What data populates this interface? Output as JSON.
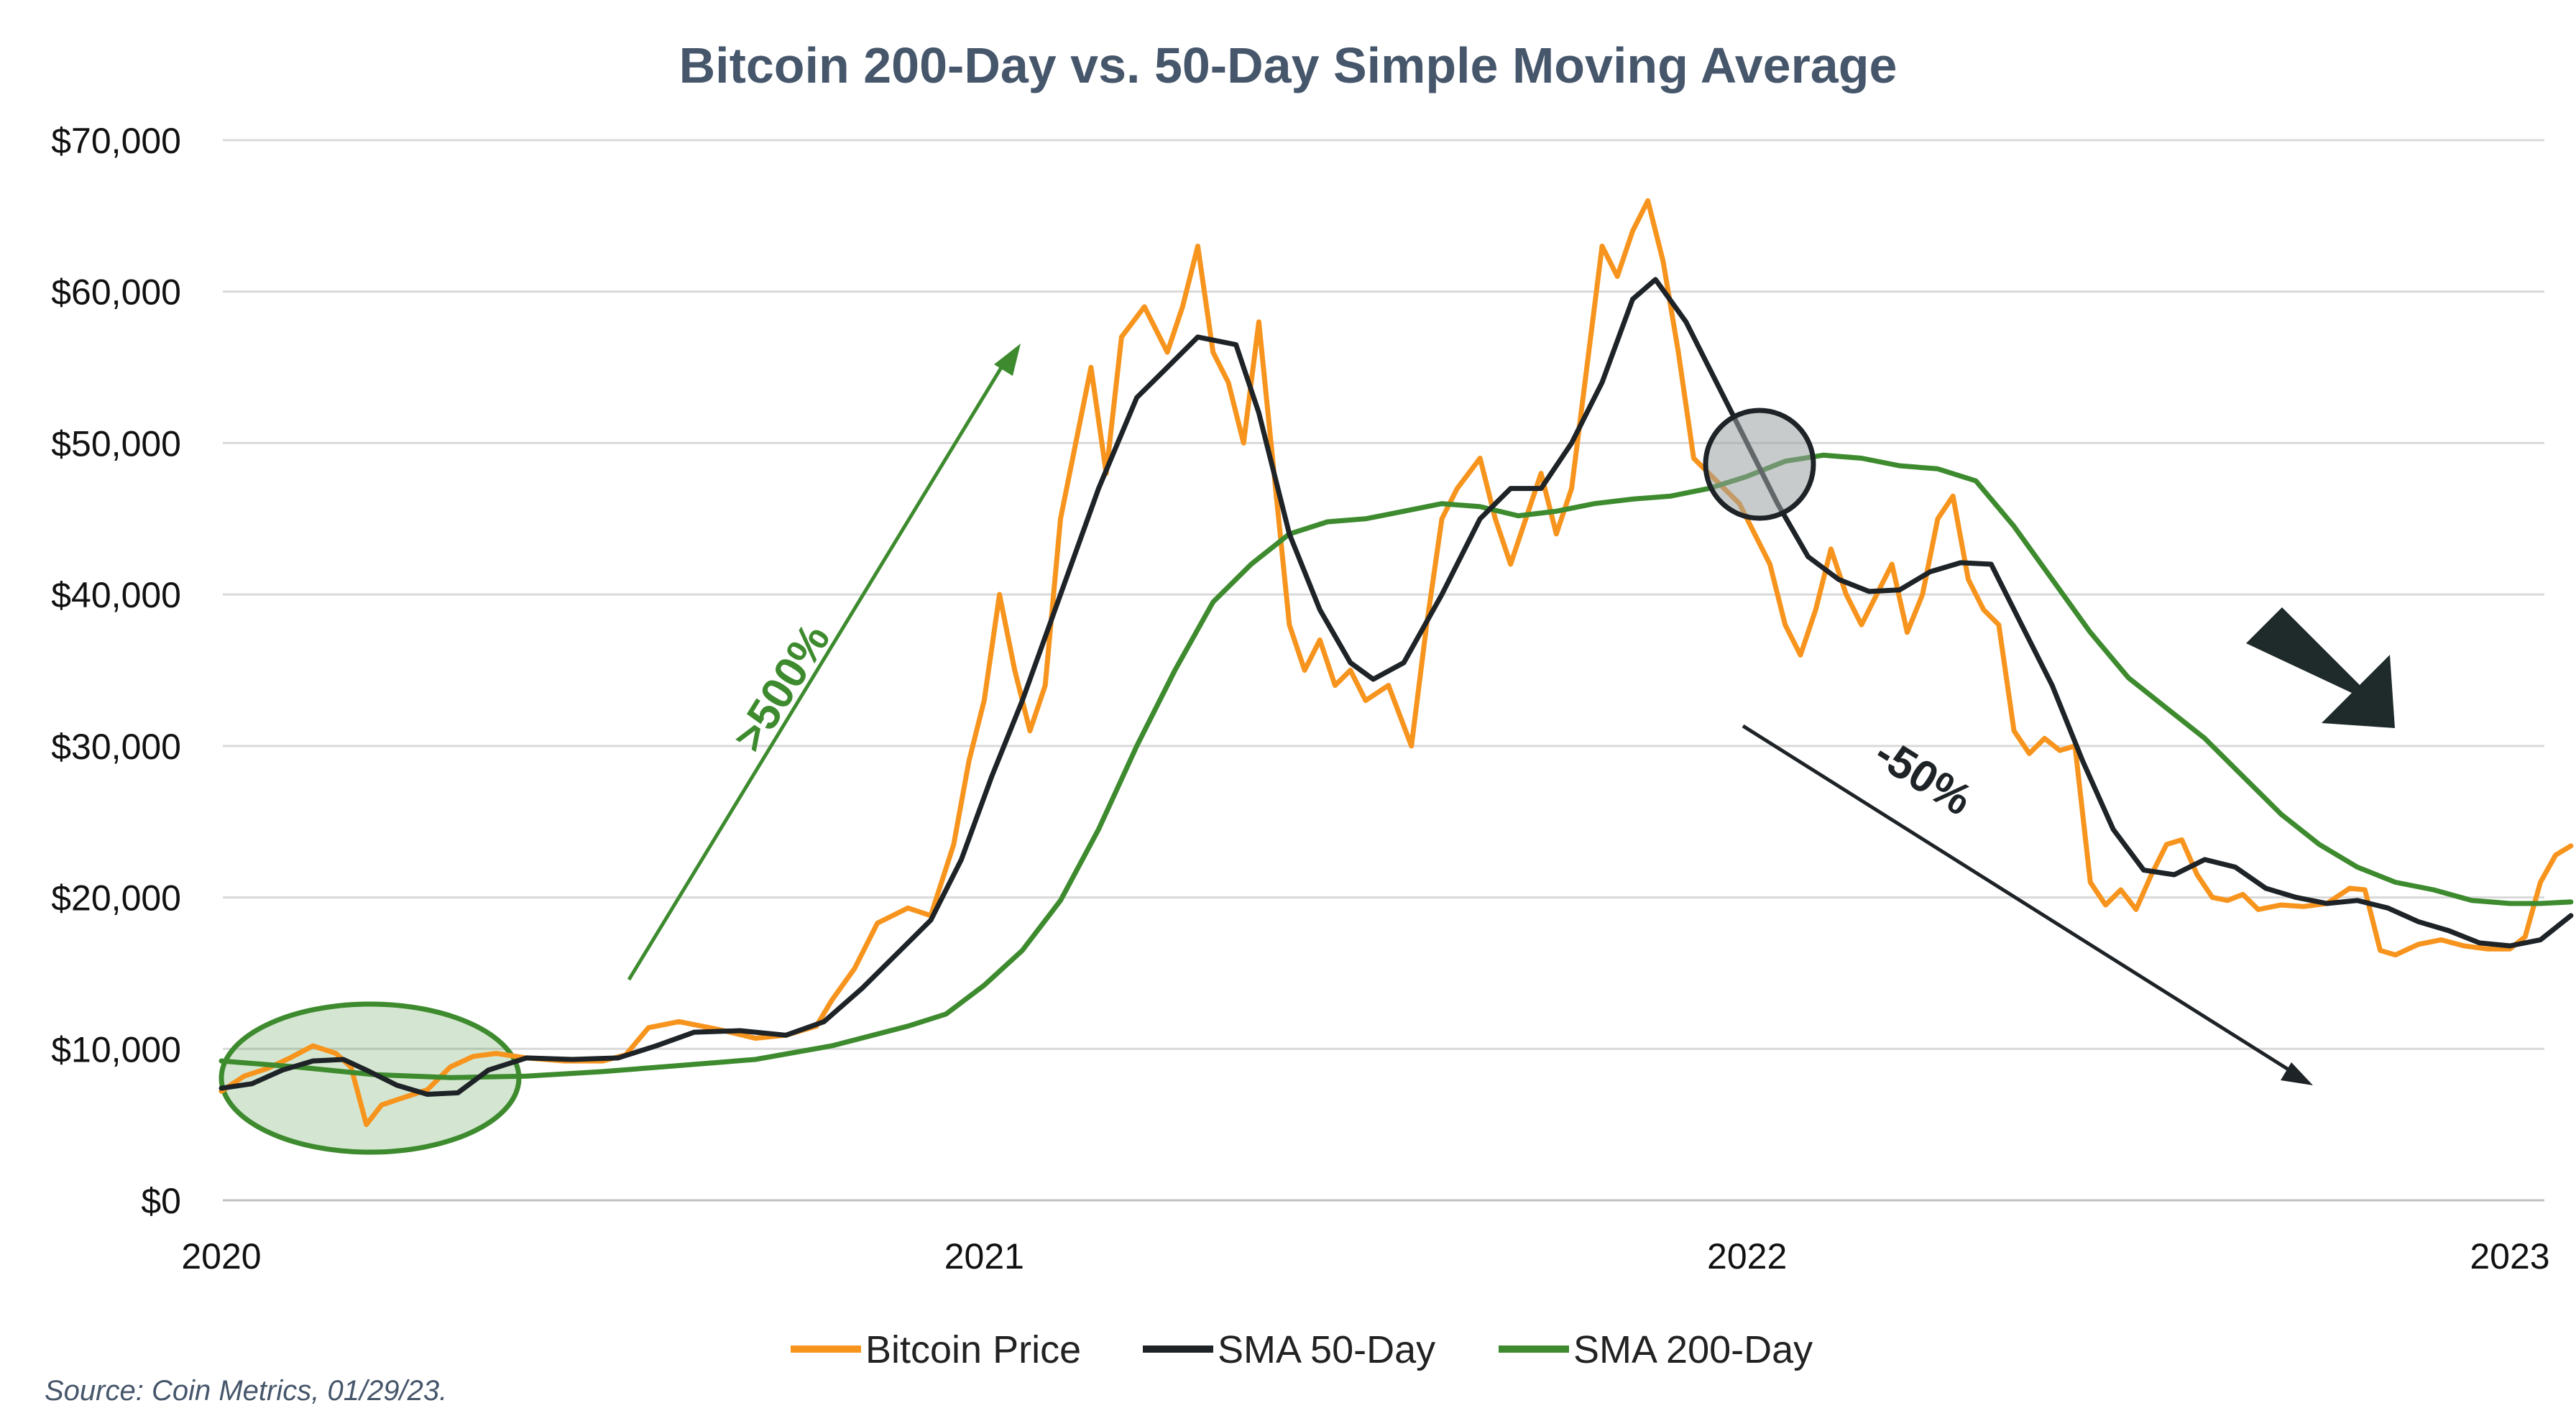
{
  "chart_data": {
    "type": "line",
    "title": "Bitcoin 200-Day vs. 50-Day Simple Moving Average",
    "xlabel": "",
    "ylabel": "",
    "xlim": [
      2020.0,
      2023.08
    ],
    "ylim": [
      0,
      70000
    ],
    "x_ticks": [
      {
        "value": 2020,
        "label": "2020"
      },
      {
        "value": 2021,
        "label": "2021"
      },
      {
        "value": 2022,
        "label": "2022"
      },
      {
        "value": 2023,
        "label": "2023"
      }
    ],
    "y_ticks": [
      {
        "value": 0,
        "label": "$0"
      },
      {
        "value": 10000,
        "label": "$10,000"
      },
      {
        "value": 20000,
        "label": "$20,000"
      },
      {
        "value": 30000,
        "label": "$30,000"
      },
      {
        "value": 40000,
        "label": "$40,000"
      },
      {
        "value": 50000,
        "label": "$50,000"
      },
      {
        "value": 60000,
        "label": "$60,000"
      },
      {
        "value": 70000,
        "label": "$70,000"
      }
    ],
    "grid": true,
    "legend_position": "bottom-center",
    "series": [
      {
        "name": "Bitcoin Price",
        "color": "#f7941d",
        "points": [
          [
            2020.0,
            7200
          ],
          [
            2020.03,
            8200
          ],
          [
            2020.06,
            8700
          ],
          [
            2020.09,
            9400
          ],
          [
            2020.12,
            10200
          ],
          [
            2020.15,
            9700
          ],
          [
            2020.17,
            8800
          ],
          [
            2020.19,
            5000
          ],
          [
            2020.21,
            6300
          ],
          [
            2020.24,
            6800
          ],
          [
            2020.27,
            7300
          ],
          [
            2020.3,
            8800
          ],
          [
            2020.33,
            9500
          ],
          [
            2020.36,
            9700
          ],
          [
            2020.4,
            9400
          ],
          [
            2020.45,
            9200
          ],
          [
            2020.5,
            9200
          ],
          [
            2020.53,
            9600
          ],
          [
            2020.56,
            11400
          ],
          [
            2020.6,
            11800
          ],
          [
            2020.65,
            11300
          ],
          [
            2020.7,
            10700
          ],
          [
            2020.74,
            10900
          ],
          [
            2020.78,
            11500
          ],
          [
            2020.8,
            13200
          ],
          [
            2020.83,
            15300
          ],
          [
            2020.86,
            18300
          ],
          [
            2020.9,
            19300
          ],
          [
            2020.93,
            18800
          ],
          [
            2020.96,
            23500
          ],
          [
            2020.98,
            29000
          ],
          [
            2021.0,
            33000
          ],
          [
            2021.02,
            40000
          ],
          [
            2021.04,
            35000
          ],
          [
            2021.06,
            31000
          ],
          [
            2021.08,
            34000
          ],
          [
            2021.1,
            45000
          ],
          [
            2021.12,
            50000
          ],
          [
            2021.14,
            55000
          ],
          [
            2021.16,
            48000
          ],
          [
            2021.18,
            57000
          ],
          [
            2021.21,
            59000
          ],
          [
            2021.24,
            56000
          ],
          [
            2021.26,
            59000
          ],
          [
            2021.28,
            63000
          ],
          [
            2021.3,
            56000
          ],
          [
            2021.32,
            54000
          ],
          [
            2021.34,
            50000
          ],
          [
            2021.36,
            58000
          ],
          [
            2021.38,
            48000
          ],
          [
            2021.4,
            38000
          ],
          [
            2021.42,
            35000
          ],
          [
            2021.44,
            37000
          ],
          [
            2021.46,
            34000
          ],
          [
            2021.48,
            35000
          ],
          [
            2021.5,
            33000
          ],
          [
            2021.53,
            34000
          ],
          [
            2021.56,
            30000
          ],
          [
            2021.58,
            38000
          ],
          [
            2021.6,
            45000
          ],
          [
            2021.62,
            47000
          ],
          [
            2021.65,
            49000
          ],
          [
            2021.67,
            45000
          ],
          [
            2021.69,
            42000
          ],
          [
            2021.71,
            45000
          ],
          [
            2021.73,
            48000
          ],
          [
            2021.75,
            44000
          ],
          [
            2021.77,
            47000
          ],
          [
            2021.79,
            55000
          ],
          [
            2021.81,
            63000
          ],
          [
            2021.83,
            61000
          ],
          [
            2021.85,
            64000
          ],
          [
            2021.87,
            66000
          ],
          [
            2021.89,
            62000
          ],
          [
            2021.91,
            56000
          ],
          [
            2021.93,
            49000
          ],
          [
            2021.95,
            48000
          ],
          [
            2021.97,
            47000
          ],
          [
            2021.99,
            46000
          ],
          [
            2022.01,
            44000
          ],
          [
            2022.03,
            42000
          ],
          [
            2022.05,
            38000
          ],
          [
            2022.07,
            36000
          ],
          [
            2022.09,
            39000
          ],
          [
            2022.11,
            43000
          ],
          [
            2022.13,
            40000
          ],
          [
            2022.15,
            38000
          ],
          [
            2022.17,
            40000
          ],
          [
            2022.19,
            42000
          ],
          [
            2022.21,
            37500
          ],
          [
            2022.23,
            40000
          ],
          [
            2022.25,
            45000
          ],
          [
            2022.27,
            46500
          ],
          [
            2022.29,
            41000
          ],
          [
            2022.31,
            39000
          ],
          [
            2022.33,
            38000
          ],
          [
            2022.35,
            31000
          ],
          [
            2022.37,
            29500
          ],
          [
            2022.39,
            30500
          ],
          [
            2022.41,
            29700
          ],
          [
            2022.43,
            30000
          ],
          [
            2022.45,
            21000
          ],
          [
            2022.47,
            19500
          ],
          [
            2022.49,
            20500
          ],
          [
            2022.51,
            19200
          ],
          [
            2022.53,
            21500
          ],
          [
            2022.55,
            23500
          ],
          [
            2022.57,
            23800
          ],
          [
            2022.59,
            21500
          ],
          [
            2022.61,
            20000
          ],
          [
            2022.63,
            19800
          ],
          [
            2022.65,
            20200
          ],
          [
            2022.67,
            19200
          ],
          [
            2022.7,
            19500
          ],
          [
            2022.73,
            19400
          ],
          [
            2022.76,
            19600
          ],
          [
            2022.79,
            20600
          ],
          [
            2022.81,
            20500
          ],
          [
            2022.83,
            16500
          ],
          [
            2022.85,
            16200
          ],
          [
            2022.88,
            16900
          ],
          [
            2022.91,
            17200
          ],
          [
            2022.94,
            16800
          ],
          [
            2022.97,
            16600
          ],
          [
            2023.0,
            16600
          ],
          [
            2023.02,
            17400
          ],
          [
            2023.04,
            21000
          ],
          [
            2023.06,
            22800
          ],
          [
            2023.08,
            23400
          ]
        ]
      },
      {
        "name": "SMA 50-Day",
        "color": "#1e2327",
        "points": [
          [
            2020.0,
            7400
          ],
          [
            2020.04,
            7700
          ],
          [
            2020.08,
            8600
          ],
          [
            2020.12,
            9200
          ],
          [
            2020.16,
            9300
          ],
          [
            2020.19,
            8600
          ],
          [
            2020.23,
            7600
          ],
          [
            2020.27,
            7000
          ],
          [
            2020.31,
            7100
          ],
          [
            2020.35,
            8600
          ],
          [
            2020.4,
            9400
          ],
          [
            2020.46,
            9300
          ],
          [
            2020.52,
            9400
          ],
          [
            2020.57,
            10200
          ],
          [
            2020.62,
            11100
          ],
          [
            2020.68,
            11200
          ],
          [
            2020.74,
            10900
          ],
          [
            2020.79,
            11800
          ],
          [
            2020.84,
            14000
          ],
          [
            2020.89,
            16500
          ],
          [
            2020.93,
            18500
          ],
          [
            2020.97,
            22500
          ],
          [
            2021.01,
            28000
          ],
          [
            2021.05,
            33000
          ],
          [
            2021.1,
            40000
          ],
          [
            2021.15,
            47000
          ],
          [
            2021.2,
            53000
          ],
          [
            2021.24,
            55000
          ],
          [
            2021.28,
            57000
          ],
          [
            2021.33,
            56500
          ],
          [
            2021.36,
            52000
          ],
          [
            2021.4,
            44000
          ],
          [
            2021.44,
            39000
          ],
          [
            2021.48,
            35500
          ],
          [
            2021.51,
            34400
          ],
          [
            2021.55,
            35500
          ],
          [
            2021.6,
            40000
          ],
          [
            2021.65,
            45000
          ],
          [
            2021.69,
            47000
          ],
          [
            2021.73,
            47000
          ],
          [
            2021.77,
            50000
          ],
          [
            2021.81,
            54000
          ],
          [
            2021.85,
            59500
          ],
          [
            2021.88,
            60800
          ],
          [
            2021.92,
            58000
          ],
          [
            2021.96,
            54000
          ],
          [
            2022.0,
            50000
          ],
          [
            2022.04,
            46000
          ],
          [
            2022.08,
            42500
          ],
          [
            2022.12,
            41000
          ],
          [
            2022.16,
            40200
          ],
          [
            2022.2,
            40300
          ],
          [
            2022.24,
            41500
          ],
          [
            2022.28,
            42100
          ],
          [
            2022.32,
            42000
          ],
          [
            2022.36,
            38000
          ],
          [
            2022.4,
            34000
          ],
          [
            2022.44,
            29000
          ],
          [
            2022.48,
            24500
          ],
          [
            2022.52,
            21800
          ],
          [
            2022.56,
            21500
          ],
          [
            2022.6,
            22500
          ],
          [
            2022.64,
            22000
          ],
          [
            2022.68,
            20600
          ],
          [
            2022.72,
            20000
          ],
          [
            2022.76,
            19600
          ],
          [
            2022.8,
            19800
          ],
          [
            2022.84,
            19300
          ],
          [
            2022.88,
            18400
          ],
          [
            2022.92,
            17800
          ],
          [
            2022.96,
            17000
          ],
          [
            2023.0,
            16800
          ],
          [
            2023.04,
            17200
          ],
          [
            2023.08,
            18800
          ]
        ]
      },
      {
        "name": "SMA 200-Day",
        "color": "#3d8b2e",
        "points": [
          [
            2020.0,
            9200
          ],
          [
            2020.1,
            8800
          ],
          [
            2020.2,
            8300
          ],
          [
            2020.3,
            8100
          ],
          [
            2020.4,
            8200
          ],
          [
            2020.5,
            8500
          ],
          [
            2020.6,
            8900
          ],
          [
            2020.7,
            9300
          ],
          [
            2020.8,
            10200
          ],
          [
            2020.9,
            11500
          ],
          [
            2020.95,
            12300
          ],
          [
            2021.0,
            14200
          ],
          [
            2021.05,
            16500
          ],
          [
            2021.1,
            19800
          ],
          [
            2021.15,
            24500
          ],
          [
            2021.2,
            30000
          ],
          [
            2021.25,
            35000
          ],
          [
            2021.3,
            39500
          ],
          [
            2021.35,
            42000
          ],
          [
            2021.4,
            44000
          ],
          [
            2021.45,
            44800
          ],
          [
            2021.5,
            45000
          ],
          [
            2021.55,
            45500
          ],
          [
            2021.6,
            46000
          ],
          [
            2021.65,
            45800
          ],
          [
            2021.7,
            45200
          ],
          [
            2021.75,
            45500
          ],
          [
            2021.8,
            46000
          ],
          [
            2021.85,
            46300
          ],
          [
            2021.9,
            46500
          ],
          [
            2021.95,
            47000
          ],
          [
            2022.0,
            47800
          ],
          [
            2022.05,
            48800
          ],
          [
            2022.1,
            49200
          ],
          [
            2022.15,
            49000
          ],
          [
            2022.2,
            48500
          ],
          [
            2022.25,
            48300
          ],
          [
            2022.3,
            47500
          ],
          [
            2022.35,
            44500
          ],
          [
            2022.4,
            41000
          ],
          [
            2022.45,
            37500
          ],
          [
            2022.5,
            34500
          ],
          [
            2022.55,
            32500
          ],
          [
            2022.6,
            30500
          ],
          [
            2022.65,
            28000
          ],
          [
            2022.7,
            25500
          ],
          [
            2022.75,
            23500
          ],
          [
            2022.8,
            22000
          ],
          [
            2022.85,
            21000
          ],
          [
            2022.9,
            20500
          ],
          [
            2022.95,
            19800
          ],
          [
            2023.0,
            19600
          ],
          [
            2023.04,
            19600
          ],
          [
            2023.08,
            19700
          ]
        ]
      }
    ],
    "annotations": {
      "up_label": ">500%",
      "up_color": "#3d8b2e",
      "down_label": "-50%",
      "down_color": "#1e2327"
    }
  },
  "source_note": "Source: Coin Metrics, 01/29/23."
}
